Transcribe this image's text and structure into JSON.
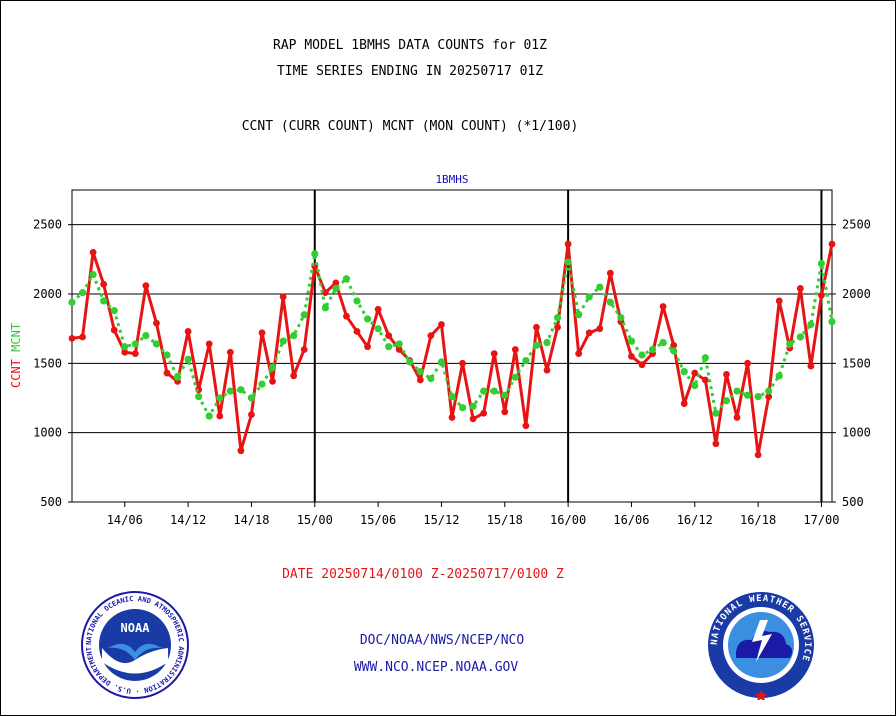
{
  "header": {
    "line1": "RAP MODEL 1BMHS DATA COUNTS for 01Z",
    "line2": "TIME SERIES ENDING IN 20250717 01Z",
    "line3": "CCNT (CURR COUNT) MCNT (MON COUNT) (*1/100)"
  },
  "footer": {
    "date_range": "DATE 20250714/0100 Z-20250717/0100 Z",
    "org_path": "DOC/NOAA/NWS/NCEP/NCO",
    "website": "WWW.NCO.NCEP.NOAA.GOV"
  },
  "logos": {
    "noaa_text": "NOAA",
    "noaa_ring_text": "NATIONAL OCEANIC AND ATMOSPHERIC ADMINISTRATION · U.S. DEPARTMENT OF COMMERCE",
    "nws_ring_text": "NATIONAL WEATHER SERVICE"
  },
  "chart_data": {
    "type": "line",
    "title": "1BMHS",
    "ylabel_ccnt": "CCNT",
    "ylabel_mcnt": "MCNT",
    "ylim": [
      500,
      2750
    ],
    "yticks": [
      500,
      1000,
      1500,
      2000,
      2500
    ],
    "ytick_labels": [
      "500",
      "1000",
      "1500",
      "2000",
      "2500"
    ],
    "xlim": [
      1,
      73
    ],
    "xticks": [
      6,
      12,
      18,
      24,
      30,
      36,
      42,
      48,
      54,
      60,
      66,
      72
    ],
    "xtick_labels": [
      "14/06",
      "14/12",
      "14/18",
      "15/00",
      "15/06",
      "15/12",
      "15/18",
      "16/00",
      "16/06",
      "16/12",
      "16/18",
      "17/00"
    ],
    "day_lines": [
      24,
      48,
      72
    ],
    "grid": true,
    "colors": {
      "ccnt": "#e81414",
      "mcnt": "#33cc33",
      "title": "#1010c0",
      "date": "#e81414",
      "footer": "#1a1aa6"
    },
    "series": [
      {
        "name": "CCNT",
        "x": [
          1,
          2,
          3,
          4,
          5,
          6,
          7,
          8,
          9,
          10,
          11,
          12,
          13,
          14,
          15,
          16,
          17,
          18,
          19,
          20,
          21,
          22,
          23,
          24,
          25,
          26,
          27,
          28,
          29,
          30,
          31,
          32,
          33,
          34,
          35,
          36,
          37,
          38,
          39,
          40,
          41,
          42,
          43,
          44,
          45,
          46,
          47,
          48,
          49,
          50,
          51,
          52,
          53,
          54,
          55,
          56,
          57,
          58,
          59,
          60,
          61,
          62,
          63,
          64,
          65,
          66,
          67,
          68,
          69,
          70,
          71,
          72,
          73
        ],
        "values": [
          1680,
          1690,
          2300,
          2070,
          1740,
          1580,
          1570,
          2060,
          1790,
          1430,
          1370,
          1730,
          1310,
          1640,
          1120,
          1580,
          870,
          1130,
          1720,
          1370,
          1980,
          1410,
          1600,
          2200,
          2010,
          2080,
          1840,
          1730,
          1620,
          1890,
          1700,
          1600,
          1520,
          1380,
          1700,
          1780,
          1110,
          1500,
          1100,
          1140,
          1570,
          1150,
          1600,
          1050,
          1760,
          1450,
          1760,
          2360,
          1570,
          1720,
          1750,
          2150,
          1800,
          1550,
          1490,
          1570,
          1910,
          1630,
          1210,
          1430,
          1380,
          920,
          1420,
          1110,
          1500,
          840,
          1260,
          1950,
          1610,
          2040,
          1480,
          1990,
          2360
        ]
      },
      {
        "name": "MCNT",
        "x": [
          1,
          2,
          3,
          4,
          5,
          6,
          7,
          8,
          9,
          10,
          11,
          12,
          13,
          14,
          15,
          16,
          17,
          18,
          19,
          20,
          21,
          22,
          23,
          24,
          25,
          26,
          27,
          28,
          29,
          30,
          31,
          32,
          33,
          34,
          35,
          36,
          37,
          38,
          39,
          40,
          41,
          42,
          43,
          44,
          45,
          46,
          47,
          48,
          49,
          50,
          51,
          52,
          53,
          54,
          55,
          56,
          57,
          58,
          59,
          60,
          61,
          62,
          63,
          64,
          65,
          66,
          67,
          68,
          69,
          70,
          71,
          72,
          73
        ],
        "values": [
          1940,
          2010,
          2140,
          1950,
          1880,
          1620,
          1640,
          1700,
          1640,
          1560,
          1400,
          1530,
          1260,
          1120,
          1250,
          1300,
          1310,
          1250,
          1350,
          1470,
          1660,
          1700,
          1850,
          2290,
          1900,
          2040,
          2110,
          1950,
          1820,
          1750,
          1620,
          1640,
          1510,
          1440,
          1390,
          1510,
          1260,
          1180,
          1190,
          1300,
          1300,
          1270,
          1400,
          1520,
          1630,
          1650,
          1830,
          2230,
          1850,
          1980,
          2050,
          1940,
          1830,
          1660,
          1560,
          1600,
          1650,
          1590,
          1440,
          1340,
          1540,
          1140,
          1230,
          1300,
          1270,
          1260,
          1300,
          1410,
          1640,
          1690,
          1780,
          2220,
          1800
        ]
      }
    ]
  }
}
